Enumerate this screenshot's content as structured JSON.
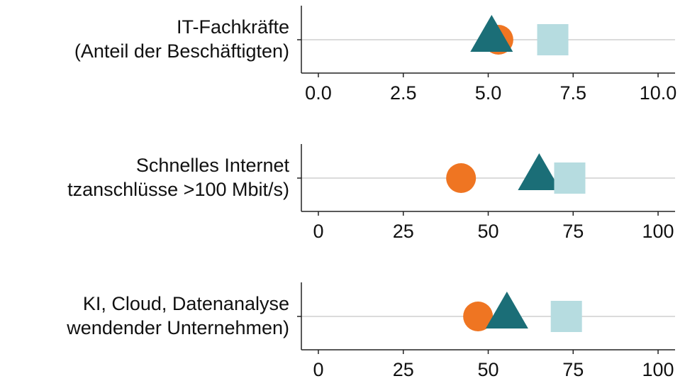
{
  "chart_data": [
    {
      "type": "dot",
      "label": [
        "IT-Fachkräfte",
        "(Anteil der Beschäftigten)"
      ],
      "xlim": [
        -0.5,
        10.5
      ],
      "xticks": [
        {
          "value": 0,
          "label": "0.0"
        },
        2.5,
        {
          "value": 5,
          "label": "5.0"
        },
        7.5,
        {
          "value": 10,
          "label": "10.0"
        }
      ],
      "grid": true,
      "series": [
        {
          "marker": "circle",
          "color": "#ef7522",
          "values": [
            5.3
          ]
        },
        {
          "marker": "triangle",
          "color": "#1b6e77",
          "values": [
            5.1
          ]
        },
        {
          "marker": "square",
          "color": "#b6dce0",
          "values": [
            6.9
          ]
        }
      ]
    },
    {
      "type": "dot",
      "label": [
        "Schnelles Internet",
        "tzanschlüsse >100 Mbit/s)"
      ],
      "xlim": [
        -5,
        105
      ],
      "xticks": [
        0,
        25,
        50,
        75,
        100
      ],
      "grid": true,
      "series": [
        {
          "marker": "circle",
          "color": "#ef7522",
          "values": [
            42
          ]
        },
        {
          "marker": "triangle",
          "color": "#1b6e77",
          "values": [
            65
          ]
        },
        {
          "marker": "square",
          "color": "#b6dce0",
          "values": [
            74
          ]
        }
      ]
    },
    {
      "type": "dot",
      "label": [
        "KI, Cloud, Datenanalyse",
        "wendender Unternehmen)"
      ],
      "xlim": [
        -5,
        105
      ],
      "xticks": [
        0,
        25,
        50,
        75,
        100
      ],
      "grid": true,
      "series": [
        {
          "marker": "circle",
          "color": "#ef7522",
          "values": [
            47
          ]
        },
        {
          "marker": "triangle",
          "color": "#1b6e77",
          "values": [
            55.5
          ]
        },
        {
          "marker": "square",
          "color": "#b6dce0",
          "values": [
            73
          ]
        }
      ]
    }
  ]
}
